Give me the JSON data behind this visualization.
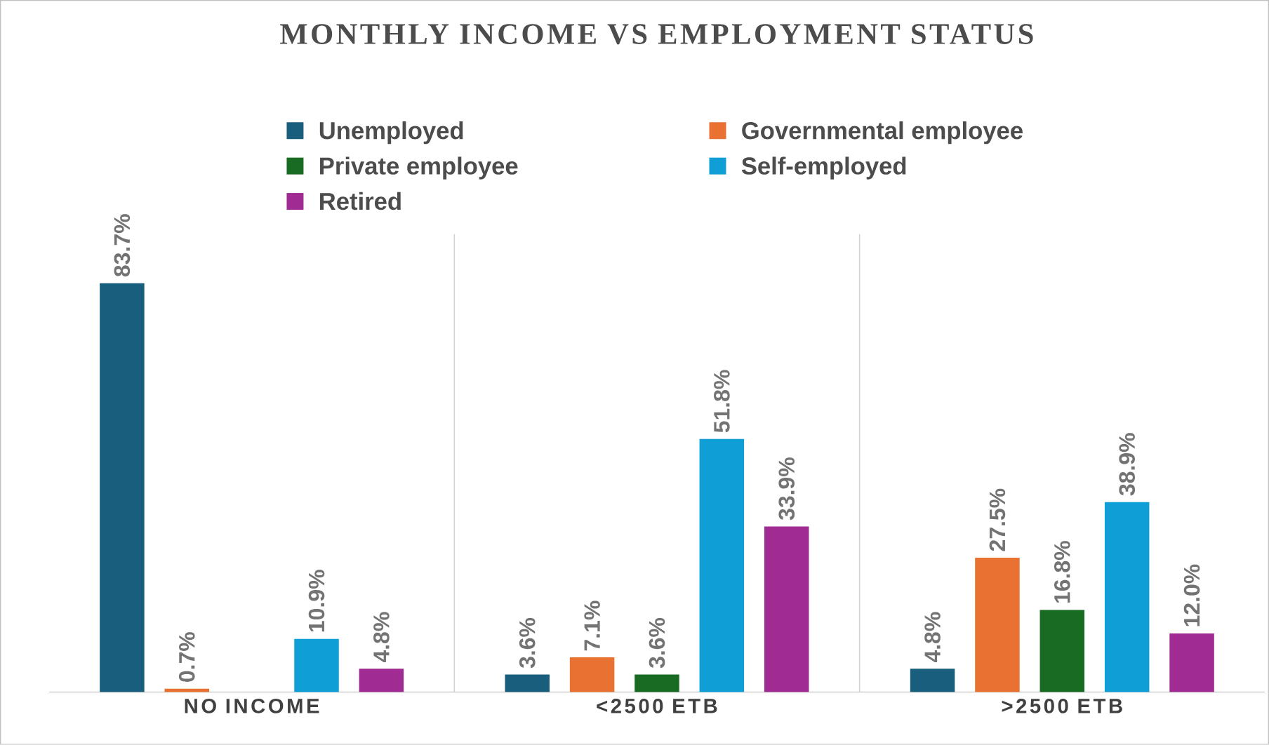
{
  "chart_data": {
    "type": "bar",
    "title": "MONTHLY INCOME VS EMPLOYMENT STATUS",
    "categories": [
      "NO INCOME",
      "<2500 ETB",
      ">2500 ETB"
    ],
    "series": [
      {
        "name": "Unemployed",
        "color": "#1a5e7e",
        "values": [
          83.7,
          3.6,
          4.8
        ],
        "value_labels": [
          "83.7%",
          "3.6%",
          "4.8%"
        ]
      },
      {
        "name": "Governmental employee",
        "color": "#e97132",
        "values": [
          0.7,
          7.1,
          27.5
        ],
        "value_labels": [
          "0.7%",
          "7.1%",
          "27.5%"
        ]
      },
      {
        "name": "Private employee",
        "color": "#196b24",
        "values": [
          null,
          3.6,
          16.8
        ],
        "value_labels": [
          null,
          "3.6%",
          "16.8%"
        ]
      },
      {
        "name": "Self-employed",
        "color": "#0f9ed5",
        "values": [
          10.9,
          51.8,
          38.9
        ],
        "value_labels": [
          "10.9%",
          "51.8%",
          "38.9%"
        ]
      },
      {
        "name": "Retired",
        "color": "#a02b93",
        "values": [
          4.8,
          33.9,
          12.0
        ],
        "value_labels": [
          "4.8%",
          "33.9%",
          "12.0%"
        ]
      }
    ],
    "grid": "x",
    "legend": "top",
    "tick_labels": "x"
  }
}
